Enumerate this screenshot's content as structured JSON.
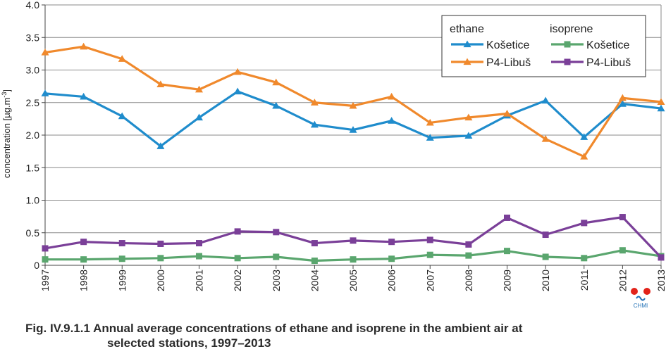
{
  "chart_data": {
    "type": "line",
    "x": [
      "1997",
      "1998",
      "1999",
      "2000",
      "2001",
      "2002",
      "2003",
      "2004",
      "2005",
      "2006",
      "2007",
      "2008",
      "2009",
      "2010",
      "2011",
      "2012",
      "2013"
    ],
    "series": [
      {
        "name": "Košetice",
        "group": "ethane",
        "color": "#1f8ccc",
        "marker": "triangle",
        "values": [
          2.64,
          2.59,
          2.29,
          1.83,
          2.27,
          2.67,
          2.45,
          2.16,
          2.08,
          2.22,
          1.96,
          1.99,
          2.3,
          2.53,
          1.97,
          2.48,
          2.41
        ]
      },
      {
        "name": "P4-Libuš",
        "group": "ethane",
        "color": "#f0892c",
        "marker": "triangle",
        "values": [
          3.27,
          3.36,
          3.17,
          2.78,
          2.7,
          2.97,
          2.81,
          2.5,
          2.45,
          2.59,
          2.19,
          2.27,
          2.33,
          1.94,
          1.67,
          2.57,
          2.51
        ]
      },
      {
        "name": "Košetice",
        "group": "isoprene",
        "color": "#5aa66e",
        "marker": "square",
        "values": [
          0.09,
          0.09,
          0.1,
          0.11,
          0.14,
          0.11,
          0.13,
          0.07,
          0.09,
          0.1,
          0.16,
          0.15,
          0.22,
          0.13,
          0.11,
          0.23,
          0.14
        ]
      },
      {
        "name": "P4-Libuš",
        "group": "isoprene",
        "color": "#7a3f98",
        "marker": "square",
        "values": [
          0.26,
          0.36,
          0.34,
          0.33,
          0.34,
          0.52,
          0.51,
          0.34,
          0.38,
          0.36,
          0.39,
          0.32,
          0.73,
          0.47,
          0.65,
          0.74,
          0.12
        ]
      }
    ],
    "legend_groups": [
      "ethane",
      "isoprene"
    ],
    "ylabel": "concentration [µg.m-3]",
    "ylim": [
      0,
      4.0
    ],
    "yticks": [
      "0",
      "0.5",
      "1.0",
      "1.5",
      "2.0",
      "2.5",
      "3.0",
      "3.5",
      "4.0"
    ],
    "grid": true,
    "legend_position": "top-right"
  },
  "logo_text": "CHMI",
  "caption": {
    "line1": "Fig. IV.9.1.1  Annual average concentrations of ethane and isoprene in the ambient air at",
    "line2": "selected stations, 1997–2013"
  }
}
